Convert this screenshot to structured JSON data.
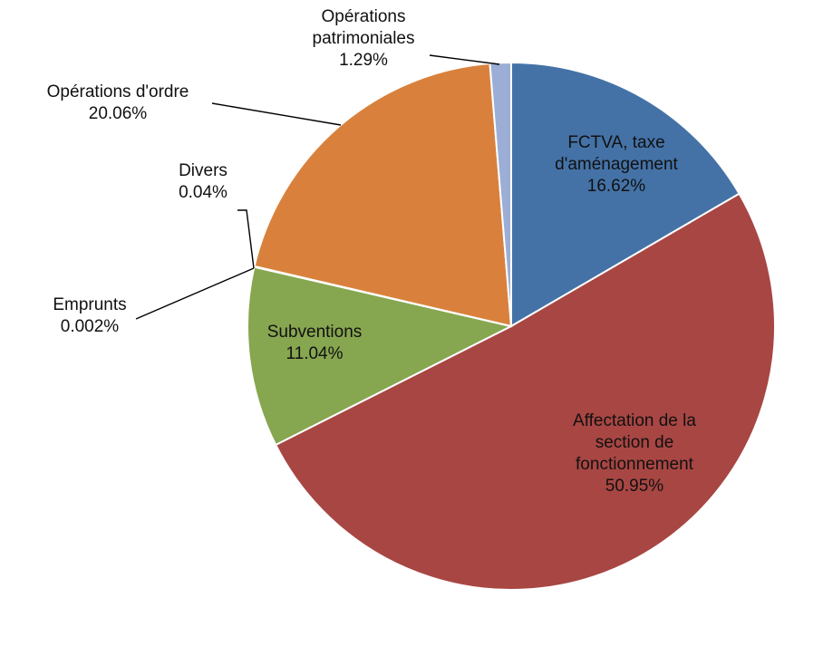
{
  "chart_data": {
    "type": "pie",
    "title": "",
    "slices": [
      {
        "label_lines": [
          "FCTVA, taxe",
          "d'aménagement"
        ],
        "value": 16.62,
        "value_label": "16.62%",
        "color": "#4472a6"
      },
      {
        "label_lines": [
          "Affectation de la",
          "section de",
          "fonctionnement"
        ],
        "value": 50.95,
        "value_label": "50.95%",
        "color": "#a84643"
      },
      {
        "label_lines": [
          "Subventions"
        ],
        "value": 11.04,
        "value_label": "11.04%",
        "color": "#87a650"
      },
      {
        "label_lines": [
          "Emprunts"
        ],
        "value": 0.002,
        "value_label": "0.002%",
        "color": "#6f5496"
      },
      {
        "label_lines": [
          "Divers"
        ],
        "value": 0.04,
        "value_label": "0.04%",
        "color": "#3fa0b6"
      },
      {
        "label_lines": [
          "Opérations d'ordre"
        ],
        "value": 20.06,
        "value_label": "20.06%",
        "color": "#d9813c"
      },
      {
        "label_lines": [
          "Opérations",
          "patrimoniales"
        ],
        "value": 1.29,
        "value_label": "1.29%",
        "color": "#9caed6"
      }
    ],
    "legend": "none"
  }
}
